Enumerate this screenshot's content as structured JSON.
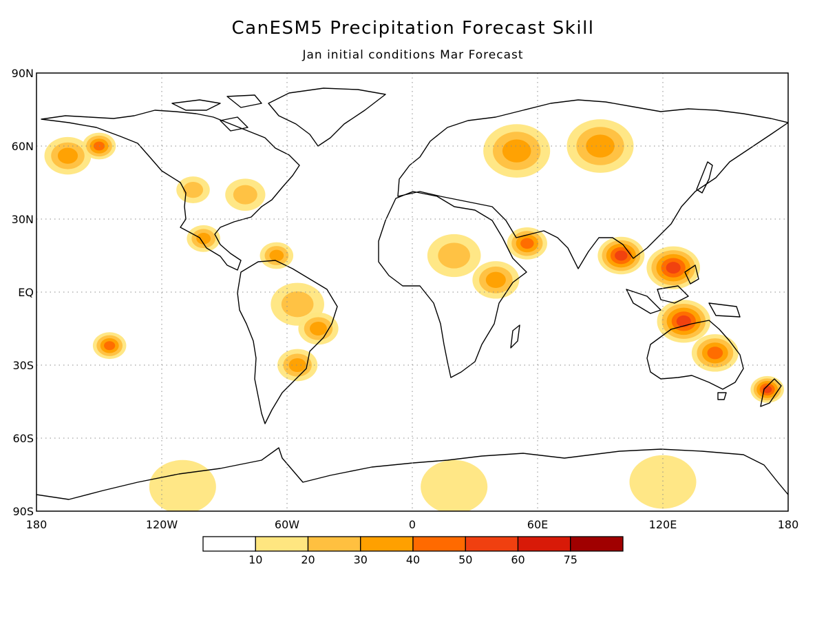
{
  "title": "CanESM5 Precipitation Forecast Skill",
  "subtitle": "Jan initial conditions  Mar Forecast",
  "map": {
    "lat_labels": [
      "90N",
      "60N",
      "30N",
      "EQ",
      "30S",
      "60S",
      "90S"
    ],
    "lon_labels": [
      "180",
      "120W",
      "60W",
      "0",
      "60E",
      "120E",
      "180"
    ],
    "lat_range": [
      -90,
      90
    ],
    "lon_range": [
      -180,
      180
    ],
    "gridlines": "dotted"
  },
  "colorbar": {
    "labels": [
      "10",
      "20",
      "30",
      "40",
      "50",
      "60",
      "75"
    ],
    "colors": [
      "#ffffff",
      "#ffe680",
      "#ffc040",
      "#ffa000",
      "#ff6a00",
      "#f04010",
      "#d81a08",
      "#a00000"
    ]
  },
  "skill_regions": [
    {
      "lon": -165,
      "lat": 56,
      "r": 7,
      "level": 3
    },
    {
      "lon": -150,
      "lat": 60,
      "r": 5,
      "level": 4
    },
    {
      "lon": -105,
      "lat": 42,
      "r": 5,
      "level": 2
    },
    {
      "lon": -80,
      "lat": 40,
      "r": 6,
      "level": 2
    },
    {
      "lon": -100,
      "lat": 22,
      "r": 5,
      "level": 3
    },
    {
      "lon": -65,
      "lat": 15,
      "r": 5,
      "level": 3
    },
    {
      "lon": -55,
      "lat": -5,
      "r": 8,
      "level": 2
    },
    {
      "lon": -45,
      "lat": -15,
      "r": 6,
      "level": 3
    },
    {
      "lon": -55,
      "lat": -30,
      "r": 6,
      "level": 3
    },
    {
      "lon": -145,
      "lat": -22,
      "r": 5,
      "level": 4
    },
    {
      "lon": 20,
      "lat": 15,
      "r": 8,
      "level": 2
    },
    {
      "lon": 40,
      "lat": 5,
      "r": 7,
      "level": 3
    },
    {
      "lon": 55,
      "lat": 20,
      "r": 6,
      "level": 4
    },
    {
      "lon": 50,
      "lat": 58,
      "r": 10,
      "level": 3
    },
    {
      "lon": 90,
      "lat": 60,
      "r": 10,
      "level": 3
    },
    {
      "lon": 100,
      "lat": 15,
      "r": 7,
      "level": 5
    },
    {
      "lon": 125,
      "lat": 10,
      "r": 8,
      "level": 5
    },
    {
      "lon": 130,
      "lat": -12,
      "r": 8,
      "level": 5
    },
    {
      "lon": 145,
      "lat": -25,
      "r": 7,
      "level": 4
    },
    {
      "lon": 170,
      "lat": -40,
      "r": 5,
      "level": 5
    },
    {
      "lon": -110,
      "lat": -80,
      "r": 10,
      "level": 1
    },
    {
      "lon": 20,
      "lat": -80,
      "r": 10,
      "level": 1
    },
    {
      "lon": 120,
      "lat": -78,
      "r": 10,
      "level": 1
    }
  ]
}
